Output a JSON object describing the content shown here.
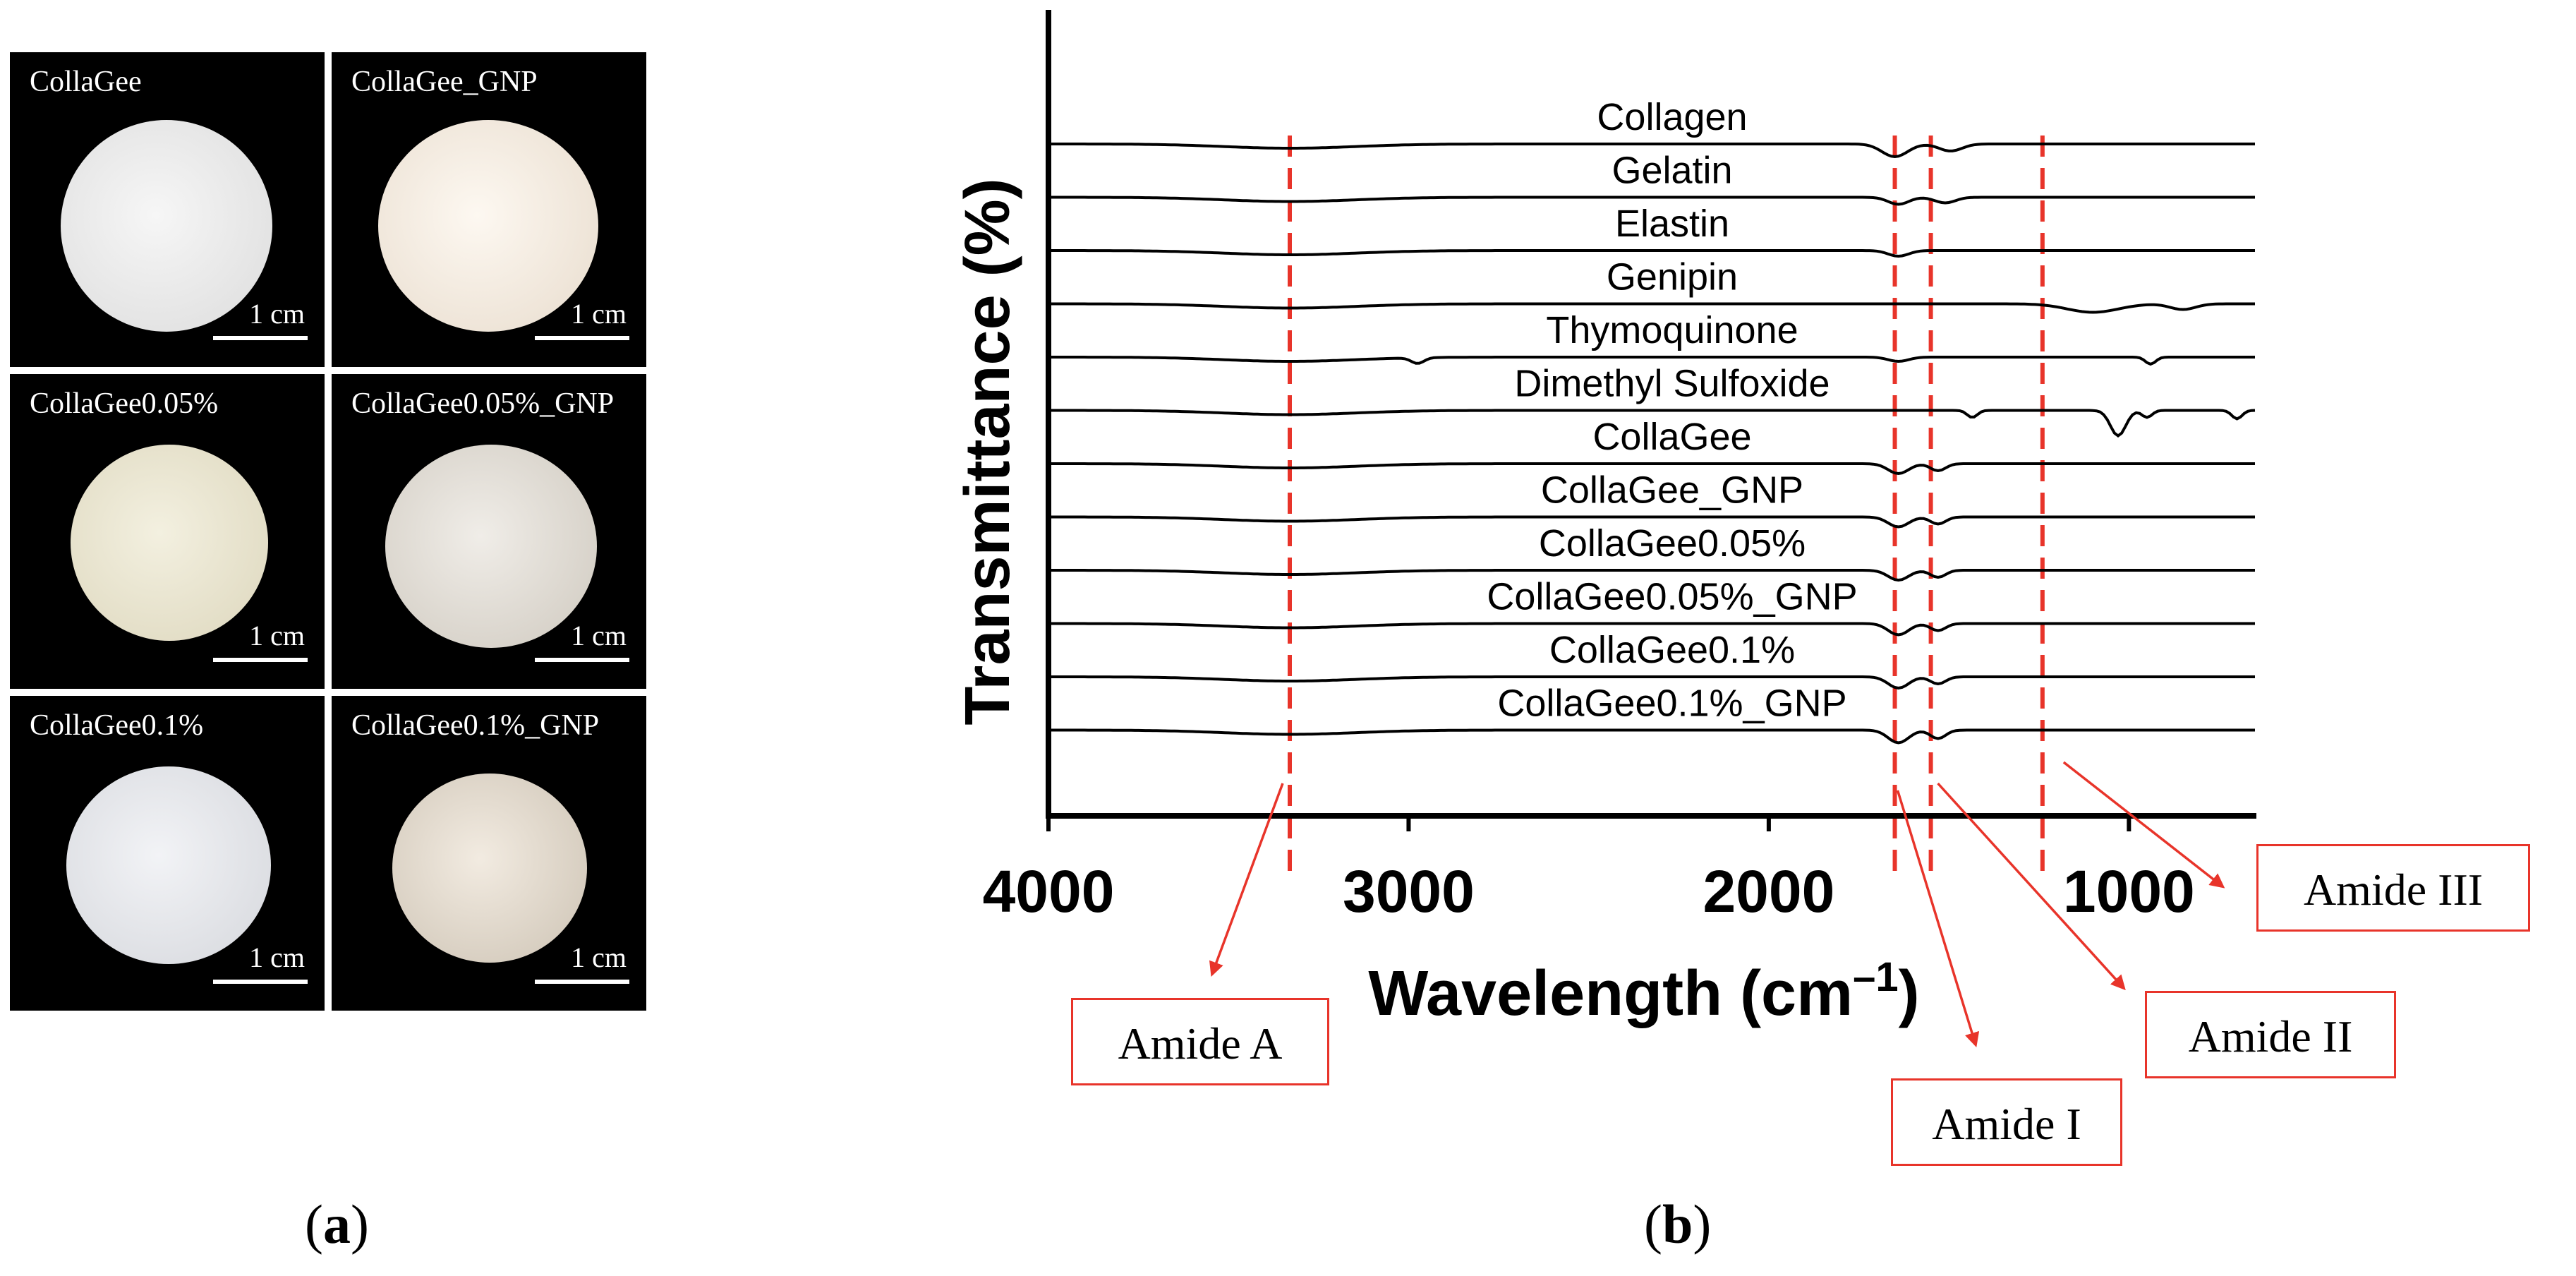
{
  "panel_a": {
    "label": "a",
    "samples": [
      {
        "name": "CollaGee",
        "scale": "1 cm",
        "color": "#eeeeee"
      },
      {
        "name": "CollaGee_GNP",
        "scale": "1 cm",
        "color": "#f7efe6"
      },
      {
        "name": "CollaGee0.05%",
        "scale": "1 cm",
        "color": "#ece8d6"
      },
      {
        "name": "CollaGee0.05%_GNP",
        "scale": "1 cm",
        "color": "#e6e2da"
      },
      {
        "name": "CollaGee0.1%",
        "scale": "1 cm",
        "color": "#e8e9ec"
      },
      {
        "name": "CollaGee0.1%_GNP",
        "scale": "1 cm",
        "color": "#e4ddd2"
      }
    ]
  },
  "panel_b": {
    "label": "b",
    "amide_labels": [
      "Amide A",
      "Amide I",
      "Amide II",
      "Amide III"
    ]
  },
  "chart_data": {
    "type": "line",
    "title": "",
    "xlabel": "Wavelength (cm",
    "xlabel_sup": "–1",
    "xlabel_suffix": ")",
    "ylabel": "Transmittance (%)",
    "xlim": [
      4000,
      650
    ],
    "x_ticks": [
      4000,
      3000,
      2000,
      1000
    ],
    "series": [
      {
        "name": "Collagen"
      },
      {
        "name": "Gelatin"
      },
      {
        "name": "Elastin"
      },
      {
        "name": "Genipin"
      },
      {
        "name": "Thymoquinone"
      },
      {
        "name": "Dimethyl Sulfoxide"
      },
      {
        "name": "CollaGee"
      },
      {
        "name": "CollaGee_GNP"
      },
      {
        "name": "CollaGee0.05%"
      },
      {
        "name": "CollaGee0.05%_GNP"
      },
      {
        "name": "CollaGee0.1%"
      },
      {
        "name": "CollaGee0.1%_GNP"
      }
    ],
    "reference_lines": [
      {
        "name": "Amide A",
        "x": 3330
      },
      {
        "name": "Amide I",
        "x": 1650
      },
      {
        "name": "Amide II",
        "x": 1550
      },
      {
        "name": "Amide III",
        "x": 1240
      }
    ],
    "colors": {
      "line": "#000000",
      "reference": "#e8342a"
    }
  }
}
